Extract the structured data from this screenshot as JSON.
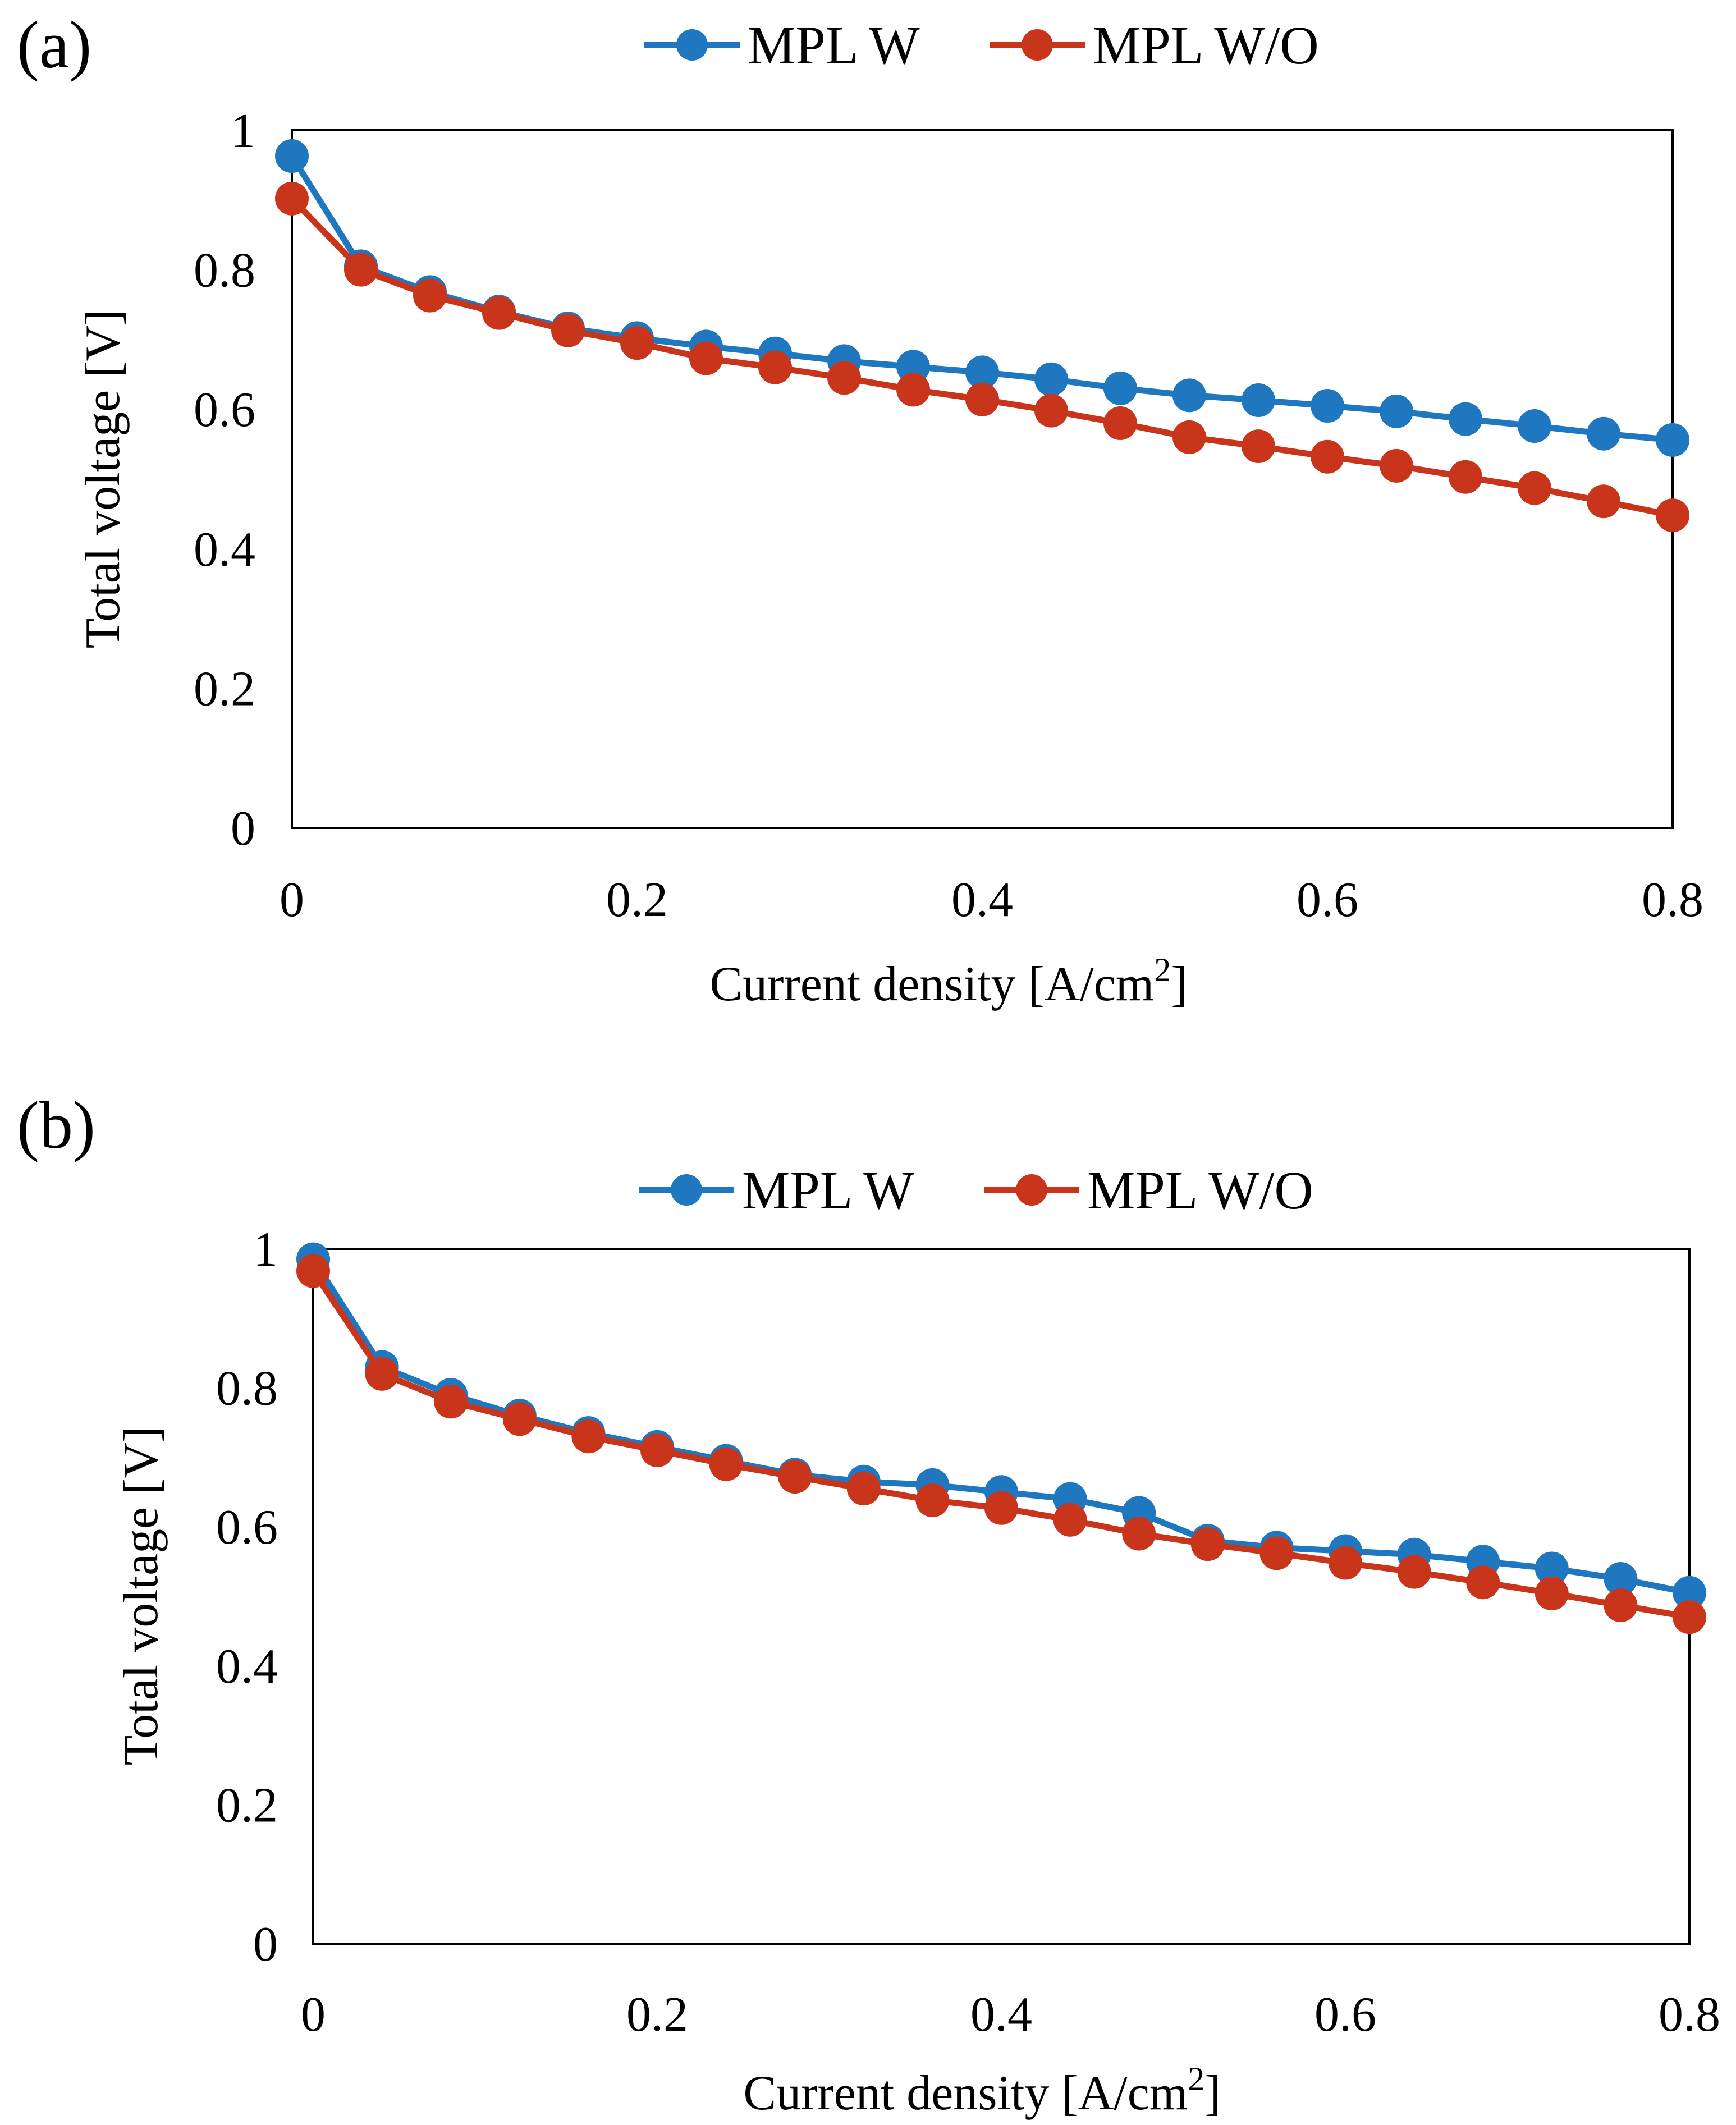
{
  "chart_data": [
    {
      "type": "line",
      "panel_label": "(a)",
      "xlabel": "Current density [A/cm",
      "xlabel_sup": "2",
      "xlabel_end": "]",
      "ylabel": "Total voltage [V]",
      "xlim": [
        0,
        0.8
      ],
      "ylim": [
        0,
        1
      ],
      "xticks": [
        "0",
        "0.2",
        "0.4",
        "0.6",
        "0.8"
      ],
      "yticks": [
        "0",
        "0.2",
        "0.4",
        "0.6",
        "0.8",
        "1"
      ],
      "legend_position": "top-center",
      "x": [
        0,
        0.04,
        0.08,
        0.12,
        0.16,
        0.2,
        0.24,
        0.28,
        0.32,
        0.36,
        0.4,
        0.44,
        0.48,
        0.52,
        0.56,
        0.6,
        0.64,
        0.68,
        0.72,
        0.76,
        0.8
      ],
      "series": [
        {
          "name": "MPL W",
          "color": "#1f77c0",
          "values": [
            0.963,
            0.805,
            0.768,
            0.74,
            0.716,
            0.702,
            0.69,
            0.68,
            0.669,
            0.661,
            0.653,
            0.643,
            0.63,
            0.62,
            0.613,
            0.605,
            0.597,
            0.586,
            0.576,
            0.565,
            0.556
          ]
        },
        {
          "name": "MPL W/O",
          "color": "#c8351b",
          "values": [
            0.902,
            0.8,
            0.763,
            0.738,
            0.713,
            0.695,
            0.673,
            0.66,
            0.645,
            0.628,
            0.614,
            0.598,
            0.58,
            0.56,
            0.547,
            0.532,
            0.519,
            0.503,
            0.487,
            0.468,
            0.448
          ]
        }
      ]
    },
    {
      "type": "line",
      "panel_label": "(b)",
      "xlabel": "Current density [A/cm",
      "xlabel_sup": "2",
      "xlabel_end": "]",
      "ylabel": "Total voltage [V]",
      "xlim": [
        0,
        0.8
      ],
      "ylim": [
        0,
        1
      ],
      "xticks": [
        "0",
        "0.2",
        "0.4",
        "0.6",
        "0.8"
      ],
      "yticks": [
        "0",
        "0.2",
        "0.4",
        "0.6",
        "0.8",
        "1"
      ],
      "legend_position": "top-center",
      "x": [
        0,
        0.04,
        0.08,
        0.12,
        0.16,
        0.2,
        0.24,
        0.28,
        0.32,
        0.36,
        0.4,
        0.44,
        0.48,
        0.52,
        0.56,
        0.6,
        0.64,
        0.68,
        0.72,
        0.76,
        0.8
      ],
      "series": [
        {
          "name": "MPL W",
          "color": "#1f77c0",
          "values": [
            0.985,
            0.83,
            0.79,
            0.76,
            0.735,
            0.715,
            0.695,
            0.675,
            0.665,
            0.66,
            0.65,
            0.64,
            0.62,
            0.58,
            0.57,
            0.565,
            0.56,
            0.55,
            0.54,
            0.525,
            0.505
          ]
        },
        {
          "name": "MPL W/O",
          "color": "#c8351b",
          "values": [
            0.968,
            0.82,
            0.78,
            0.755,
            0.73,
            0.71,
            0.69,
            0.672,
            0.655,
            0.638,
            0.627,
            0.61,
            0.59,
            0.575,
            0.562,
            0.548,
            0.535,
            0.52,
            0.504,
            0.487,
            0.47
          ]
        }
      ]
    }
  ]
}
